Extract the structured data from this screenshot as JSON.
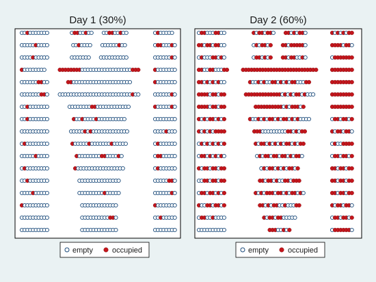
{
  "colors": {
    "background": "#eaf2f3",
    "plot_background": "#ffffff",
    "empty_marker_edge": "#1a4a7a",
    "empty_marker_fill": "#ffffff",
    "occupied_marker": "#c4161c"
  },
  "legend": {
    "empty_label": "empty",
    "occupied_label": "occupied",
    "position": "bottom"
  },
  "chart_data": [
    {
      "type": "scatter",
      "title": "Day 1 (30%)",
      "xlabel": "",
      "ylabel": "",
      "grid": false,
      "rows": [
        "oo.ooooooo|o..oo.oo|oo..oo.oo|o.ooooo",
        "ooooo.oooo|oo.oooo|oooooo.oo|o..ooo.o",
        "oooo.ooooo|ooooooo|oooooooooo|oooooo.o",
        ".oooooooo|........oooooooooooooooooo...|.ooooooo",
        "oooooo..oo|..ooooooooooooooooooooo|.ooooooo",
        "ooooooo..o|oooooooooooooooooooooooooo.oo|oooooo.o",
        "oo.ooooooo|oooooooo..oooooooooooo|.ooooo.o",
        "oo.ooooooo|.oo.oooo.oooooooooo|oooooooo",
        "oooooooooo|ooooo.o.ooooooooooooo|oooo.ooo",
        "o.oooooooo|.ooooo.ooooooo.ooooo|o.oooooo",
        "ooooo.oooo|.oooooooo..oooo.o|o..ooooo",
        "o.oooooooo|.ooooooooooooooooo|o.oooooo",
        "oo.ooooooo|ooooooooooooooo|ooooo..o",
        "oooo.ooooo|ooooooooo.ooooo|oooooo.o",
        ".ooooooooo|ooooooooooooo|.ooooooo",
        "oooooooooo|oooooooooo..o|oo.ooooo",
        "oooooooooo|ooooooooooooo|oooooooo"
      ]
    },
    {
      "type": "scatter",
      "title": "Day 2 (60%)",
      "xlabel": "",
      "ylabel": "",
      "grid": false,
      "rows": [
        "o..ooo..oo|.o..o..o|..o.o..o|.o.o.o..",
        "..o..o..oo|o.o..o.|..o.....o|....o..o",
        "o.ooo..o.o|o..o.o.|..o..oo.o|o.......",
        "..oo..ooo..|...........................|........",
        "..o.o.o.oo|.oo.o.oo..o.o.o..ooo..|........",
        "....o..o..|.............o.o.o..o.ooo|........",
        "....o..o..|..........o.o...o.|........",
        ".o.o..o.o.|.oo.o.o..o.o..o.o.oooo|o..o..o.",
        ".o.o.o....|...ooooooooo..o.o..|.o..o..o",
        "o.o.o.o.o.|.o..o.o.o.o..o.o..|o.oo....",
        "o..o.o.o.o|o.o..o..o..o.o..o|o..o..o.",
        ".o..o..o..|o.o..o.o.o..o.|..o..o..",
        "oo..o..o..|..o..o.oo..o...|..o..o..",
        "o..o..o.o.|.o.o...o..o.o..o.o|..o..o..",
        ".oo..o..o.|..o.o..oo.ooo..|.o..o..o",
        "o..oo.oooo|.o..o..ooooo|o..o..o.",
        "oooooooooo|...oo.o.|o......o"
      ]
    }
  ]
}
